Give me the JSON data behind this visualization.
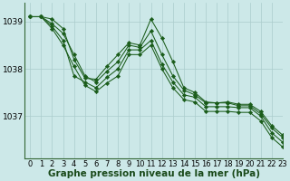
{
  "bg_color": "#cce8e8",
  "grid_color": "#aacccc",
  "line_color": "#1a5c1a",
  "marker_color": "#1a5c1a",
  "xlabel": "Graphe pression niveau de la mer (hPa)",
  "xlabel_fontsize": 7.5,
  "tick_fontsize": 6,
  "ytick_fontsize": 6.5,
  "xlim": [
    -0.5,
    23
  ],
  "ylim": [
    1036.1,
    1039.4
  ],
  "yticks": [
    1037,
    1038,
    1039
  ],
  "xticks": [
    0,
    1,
    2,
    3,
    4,
    5,
    6,
    7,
    8,
    9,
    10,
    11,
    12,
    13,
    14,
    15,
    16,
    17,
    18,
    19,
    20,
    21,
    22,
    23
  ],
  "series": [
    [
      1039.1,
      1039.1,
      1039.05,
      1038.85,
      1038.2,
      1037.8,
      1037.78,
      1038.05,
      1038.3,
      1038.55,
      1038.5,
      1039.05,
      1038.65,
      1038.15,
      1037.6,
      1037.5,
      1037.3,
      1037.28,
      1037.3,
      1037.25,
      1037.25,
      1037.1,
      1036.8,
      1036.6
    ],
    [
      1039.1,
      1039.1,
      1038.95,
      1038.75,
      1038.3,
      1037.85,
      1037.72,
      1037.95,
      1038.15,
      1038.5,
      1038.45,
      1038.8,
      1038.3,
      1037.85,
      1037.55,
      1037.45,
      1037.28,
      1037.28,
      1037.28,
      1037.22,
      1037.22,
      1037.05,
      1036.75,
      1036.55
    ],
    [
      1039.1,
      1039.1,
      1038.9,
      1038.6,
      1037.85,
      1037.72,
      1037.6,
      1037.82,
      1038.0,
      1038.4,
      1038.4,
      1038.6,
      1038.1,
      1037.72,
      1037.45,
      1037.4,
      1037.2,
      1037.2,
      1037.2,
      1037.18,
      1037.18,
      1037.0,
      1036.65,
      1036.45
    ],
    [
      1039.1,
      1039.1,
      1038.85,
      1038.5,
      1038.05,
      1037.65,
      1037.52,
      1037.7,
      1037.85,
      1038.3,
      1038.3,
      1038.5,
      1038.0,
      1037.6,
      1037.35,
      1037.3,
      1037.1,
      1037.1,
      1037.1,
      1037.08,
      1037.08,
      1036.9,
      1036.55,
      1036.35
    ]
  ]
}
